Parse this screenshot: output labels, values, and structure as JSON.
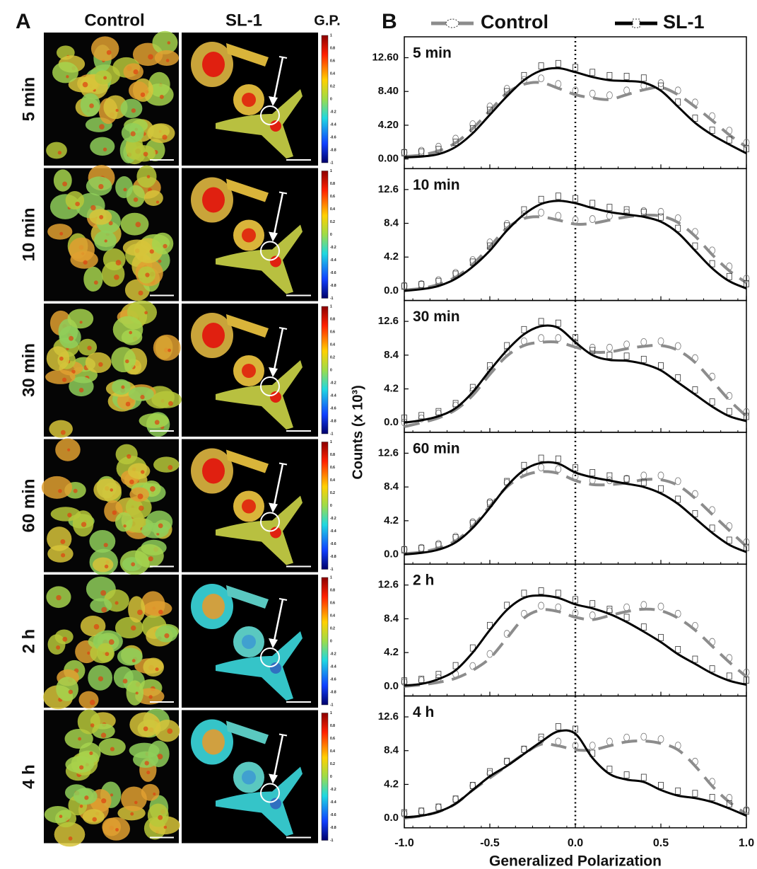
{
  "panel_a": {
    "label": "A",
    "columns": [
      "Control",
      "SL-1",
      "G.P."
    ],
    "rows": [
      "5 min",
      "10 min",
      "30 min",
      "60 min",
      "2 h",
      "4 h"
    ],
    "colorbar_ticks": [
      1,
      0.8,
      0.6,
      0.4,
      0.2,
      0,
      -0.2,
      -0.4,
      -0.6,
      -0.8,
      -1
    ]
  },
  "panel_b": {
    "label": "B",
    "x_label": "Generalized Polarization",
    "y_label": "Counts (x 10³)",
    "xlim": [
      -1.0,
      1.0
    ],
    "xticks": [
      {
        "value": -1.0,
        "label": "-1.0"
      },
      {
        "value": -0.5,
        "label": "-0.5"
      },
      {
        "value": 0,
        "label": "0.0"
      },
      {
        "value": 0.5,
        "label": "0.5"
      },
      {
        "value": 1.0,
        "label": "1.0"
      }
    ],
    "reference_x": 0
  },
  "chart_data": [
    {
      "type": "line",
      "title": "5 min",
      "ylim": [
        -1.2,
        15.2
      ],
      "yticks": [
        {
          "value": 0,
          "label": "0.00"
        },
        {
          "value": 4.2,
          "label": "4.20"
        },
        {
          "value": 8.4,
          "label": "8.40"
        },
        {
          "value": 12.6,
          "label": "12.60"
        }
      ],
      "x": [
        -1.0,
        -0.9,
        -0.8,
        -0.7,
        -0.6,
        -0.5,
        -0.4,
        -0.3,
        -0.2,
        -0.1,
        0,
        0.1,
        0.2,
        0.3,
        0.4,
        0.5,
        0.6,
        0.7,
        0.8,
        0.9,
        1.0
      ],
      "series": [
        {
          "name": "Control",
          "color": "#8c8c8c",
          "values": [
            0.3,
            0.5,
            1.0,
            2.0,
            3.8,
            6.0,
            8.2,
            9.3,
            9.5,
            8.8,
            8.0,
            7.6,
            7.4,
            8.0,
            8.6,
            8.9,
            8.0,
            6.5,
            4.8,
            3.0,
            1.5
          ]
        },
        {
          "name": "SL-1",
          "color": "#000000",
          "values": [
            0.2,
            0.3,
            0.6,
            1.5,
            3.2,
            5.5,
            7.8,
            9.8,
            11.0,
            11.3,
            10.8,
            10.2,
            9.8,
            9.7,
            9.5,
            8.5,
            6.5,
            4.5,
            3.0,
            1.8,
            0.7
          ]
        }
      ]
    },
    {
      "type": "line",
      "title": "10 min",
      "ylim": [
        -1.2,
        15.2
      ],
      "yticks": [
        {
          "value": 0,
          "label": "0.0"
        },
        4.2,
        8.4,
        12.6
      ],
      "x": [
        -1.0,
        -0.9,
        -0.8,
        -0.7,
        -0.6,
        -0.5,
        -0.4,
        -0.3,
        -0.2,
        -0.1,
        0,
        0.1,
        0.2,
        0.3,
        0.4,
        0.5,
        0.6,
        0.7,
        0.8,
        0.9,
        1.0
      ],
      "series": [
        {
          "name": "Control",
          "color": "#8c8c8c",
          "values": [
            0.1,
            0.3,
            0.8,
            1.7,
            3.3,
            5.5,
            7.8,
            9.0,
            9.2,
            8.8,
            8.3,
            8.4,
            8.8,
            9.2,
            9.4,
            9.3,
            8.5,
            6.8,
            4.5,
            2.5,
            1.0
          ]
        },
        {
          "name": "SL-1",
          "color": "#000000",
          "values": [
            0.0,
            0.2,
            0.6,
            1.5,
            3.0,
            5.0,
            7.5,
            9.5,
            10.8,
            11.2,
            10.9,
            10.3,
            9.8,
            9.5,
            9.2,
            8.6,
            7.2,
            5.0,
            2.8,
            1.2,
            0.3
          ]
        }
      ]
    },
    {
      "type": "line",
      "title": "30 min",
      "ylim": [
        -1.2,
        15.2
      ],
      "yticks": [
        {
          "value": 0,
          "label": "0.0"
        },
        4.2,
        8.4,
        12.6
      ],
      "x": [
        -1.0,
        -0.9,
        -0.8,
        -0.7,
        -0.6,
        -0.5,
        -0.4,
        -0.3,
        -0.2,
        -0.1,
        0,
        0.1,
        0.2,
        0.3,
        0.4,
        0.5,
        0.6,
        0.7,
        0.8,
        0.9,
        1.0
      ],
      "series": [
        {
          "name": "Control",
          "color": "#8c8c8c",
          "values": [
            -0.5,
            0.0,
            0.6,
            1.6,
            3.4,
            6.0,
            8.3,
            9.6,
            10.0,
            10.0,
            9.4,
            8.8,
            8.8,
            9.2,
            9.5,
            9.6,
            9.0,
            7.5,
            5.2,
            2.8,
            0.8
          ]
        },
        {
          "name": "SL-1",
          "color": "#000000",
          "values": [
            0.0,
            0.3,
            0.8,
            1.8,
            3.8,
            6.5,
            9.0,
            11.0,
            12.0,
            11.8,
            10.0,
            8.4,
            7.8,
            7.7,
            7.3,
            6.5,
            5.0,
            3.5,
            2.0,
            0.8,
            0.2
          ]
        }
      ]
    },
    {
      "type": "line",
      "title": "60 min",
      "ylim": [
        -1.2,
        15.2
      ],
      "yticks": [
        {
          "value": 0,
          "label": "0.0"
        },
        4.2,
        8.4,
        12.6
      ],
      "x": [
        -1.0,
        -0.9,
        -0.8,
        -0.7,
        -0.6,
        -0.5,
        -0.4,
        -0.3,
        -0.2,
        -0.1,
        0,
        0.1,
        0.2,
        0.3,
        0.4,
        0.5,
        0.6,
        0.7,
        0.8,
        0.9,
        1.0
      ],
      "series": [
        {
          "name": "Control",
          "color": "#8c8c8c",
          "values": [
            0.1,
            0.3,
            0.8,
            1.7,
            3.5,
            6.0,
            8.4,
            9.8,
            10.3,
            10.1,
            9.2,
            8.7,
            8.7,
            8.9,
            9.3,
            9.3,
            8.6,
            7.0,
            5.0,
            3.0,
            1.0
          ]
        },
        {
          "name": "SL-1",
          "color": "#000000",
          "values": [
            0.0,
            0.2,
            0.6,
            1.5,
            3.3,
            5.8,
            8.5,
            10.5,
            11.4,
            11.3,
            10.2,
            9.6,
            9.2,
            8.8,
            8.4,
            7.6,
            6.3,
            4.5,
            2.7,
            1.2,
            0.3
          ]
        }
      ]
    },
    {
      "type": "line",
      "title": "2 h",
      "ylim": [
        -1.2,
        15.2
      ],
      "yticks": [
        {
          "value": 0,
          "label": "0.0"
        },
        4.2,
        8.4,
        12.6
      ],
      "x": [
        -1.0,
        -0.9,
        -0.8,
        -0.7,
        -0.6,
        -0.5,
        -0.4,
        -0.3,
        -0.2,
        -0.1,
        0,
        0.1,
        0.2,
        0.3,
        0.4,
        0.5,
        0.6,
        0.7,
        0.8,
        0.9,
        1.0
      ],
      "series": [
        {
          "name": "Control",
          "color": "#8c8c8c",
          "values": [
            0.0,
            0.2,
            0.5,
            1.0,
            2.0,
            3.5,
            6.0,
            8.5,
            9.5,
            9.3,
            8.6,
            8.3,
            8.8,
            9.3,
            9.6,
            9.4,
            8.5,
            7.0,
            5.0,
            3.0,
            1.2
          ]
        },
        {
          "name": "SL-1",
          "color": "#000000",
          "values": [
            0.1,
            0.3,
            0.9,
            2.0,
            4.2,
            7.0,
            9.5,
            11.0,
            11.3,
            11.0,
            10.2,
            9.7,
            9.0,
            8.0,
            6.8,
            5.5,
            4.0,
            2.8,
            1.6,
            0.7,
            0.2
          ]
        }
      ]
    },
    {
      "type": "line",
      "title": "4 h",
      "ylim": [
        -1.2,
        15.2
      ],
      "yticks": [
        {
          "value": 0,
          "label": "0.0"
        },
        4.2,
        8.4,
        12.6
      ],
      "x": [
        -1.0,
        -0.9,
        -0.8,
        -0.7,
        -0.6,
        -0.5,
        -0.4,
        -0.3,
        -0.2,
        -0.1,
        0,
        0.1,
        0.2,
        0.3,
        0.4,
        0.5,
        0.6,
        0.7,
        0.8,
        0.9,
        1.0
      ],
      "series": [
        {
          "name": "Control",
          "color": "#8c8c8c",
          "values": [
            0.0,
            0.3,
            0.8,
            1.8,
            3.5,
            5.0,
            6.5,
            8.0,
            9.2,
            9.0,
            8.5,
            8.5,
            9.0,
            9.5,
            9.6,
            9.3,
            8.5,
            6.5,
            4.0,
            2.0,
            0.5
          ]
        },
        {
          "name": "SL-1",
          "color": "#000000",
          "values": [
            0.1,
            0.3,
            0.8,
            1.8,
            3.5,
            5.2,
            6.5,
            8.0,
            9.5,
            10.8,
            10.5,
            7.5,
            5.5,
            4.8,
            4.5,
            3.5,
            2.8,
            2.5,
            2.0,
            1.2,
            0.3
          ]
        }
      ]
    }
  ]
}
